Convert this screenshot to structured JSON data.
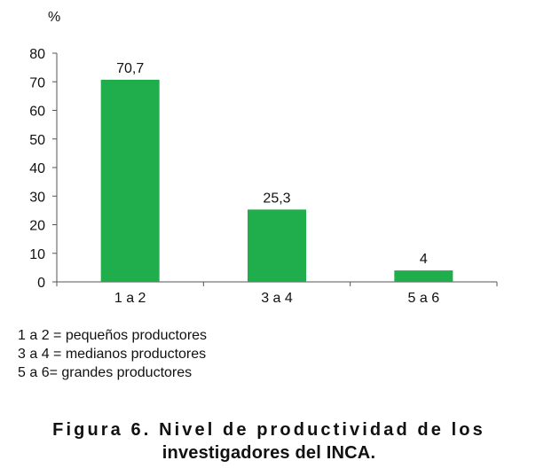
{
  "chart_data": {
    "type": "bar",
    "ylabel": "%",
    "categories": [
      "1 a 2",
      "3 a 4",
      "5 a 6"
    ],
    "values": [
      70.7,
      25.3,
      4
    ],
    "data_labels": [
      "70,7",
      "25,3",
      "4"
    ],
    "ylim": [
      0,
      80
    ],
    "yticks": [
      0,
      10,
      20,
      30,
      40,
      50,
      60,
      70,
      80
    ],
    "grid": false,
    "bar_color": "#1fae4b"
  },
  "legend": [
    "1 a 2 = pequeños productores",
    "3 a 4 = medianos productores",
    "5 a 6= grandes productores"
  ],
  "caption": {
    "line1": "Figura 6. Nivel de productividad de los",
    "line2": "investigadores del INCA."
  }
}
